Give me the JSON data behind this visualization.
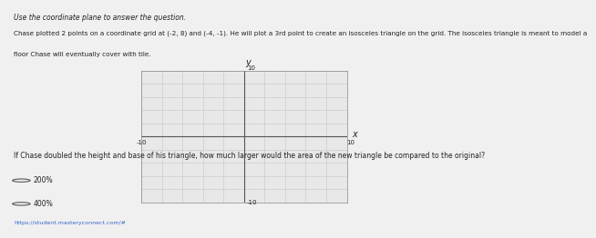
{
  "title_line1": "Use the coordinate plane to answer the question.",
  "title_line2": "Chase plotted 2 points on a coordinate grid at (-2, 8) and (-4, -1). He will plot a 3rd point to create an isosceles triangle on the grid. The isosceles triangle is meant to model a",
  "title_line3": "floor Chase will eventually cover with tile.",
  "question": "If Chase doubled the height and base of his triangle, how much larger would the area of the new triangle be compared to the original?",
  "option1": "200%",
  "option2": "400%",
  "url": "https://student.masteryconnect.com/#",
  "xlim": [
    -10,
    10
  ],
  "ylim": [
    -10,
    10
  ],
  "xticks": [
    -10,
    -8,
    -6,
    -4,
    -2,
    0,
    2,
    4,
    6,
    8,
    10
  ],
  "yticks": [
    -10,
    -8,
    -6,
    -4,
    -2,
    0,
    2,
    4,
    6,
    8,
    10
  ],
  "grid_color": "#cccccc",
  "axis_color": "#555555",
  "background_color": "#f0f0f0",
  "plot_bg_color": "#e8e8e8",
  "text_color": "#222222",
  "xlabel": "x",
  "ylabel": "y",
  "axis_label_size": 7,
  "tick_label_size": 5,
  "body_font_size": 5.5,
  "question_font_size": 5.5,
  "option_font_size": 5.5,
  "url_font_size": 4.5
}
